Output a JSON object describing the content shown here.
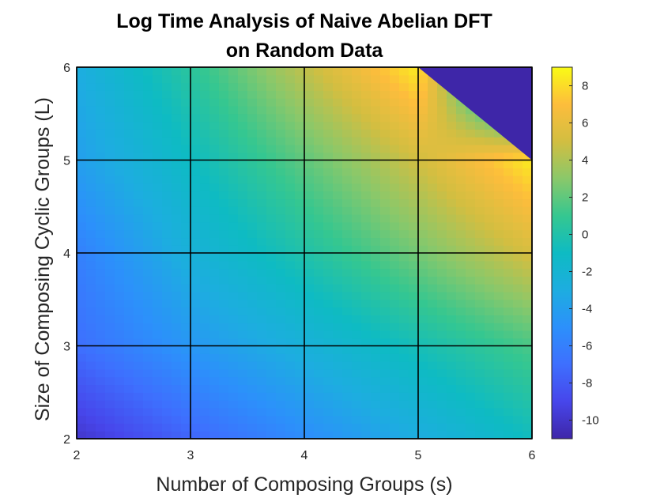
{
  "chart_data": {
    "type": "heatmap",
    "title_lines": [
      "Log Time Analysis of Naive Abelian DFT",
      "on Random Data"
    ],
    "xlabel": "Number of Composing Groups (s)",
    "ylabel": "Size of Composing Cyclic Groups (L)",
    "x": [
      2,
      3,
      4,
      5,
      6
    ],
    "y": [
      2,
      3,
      4,
      5,
      6
    ],
    "xlim": [
      2,
      6
    ],
    "ylim": [
      2,
      6
    ],
    "x_ticks": [
      "2",
      "3",
      "4",
      "5",
      "6"
    ],
    "y_ticks": [
      "2",
      "3",
      "4",
      "5",
      "6"
    ],
    "grid": true,
    "values": [
      [
        -10.0,
        -7.5,
        -5.2,
        -3.0,
        -0.8
      ],
      [
        -7.0,
        -4.5,
        -2.5,
        -0.5,
        1.5
      ],
      [
        -6.0,
        -2.5,
        0.0,
        2.5,
        5.2
      ],
      [
        -4.0,
        -1.0,
        2.0,
        5.0,
        8.5
      ],
      [
        -3.0,
        0.5,
        4.5,
        8.5,
        -11.0
      ]
    ],
    "clim": [
      -11,
      9
    ],
    "colorbar_ticks": [
      "8",
      "6",
      "4",
      "2",
      "0",
      "-2",
      "-4",
      "-6",
      "-8",
      "-10"
    ],
    "colorbar_values": [
      8,
      6,
      4,
      2,
      0,
      -2,
      -4,
      -6,
      -8,
      -10
    ],
    "colormap": "parula"
  }
}
